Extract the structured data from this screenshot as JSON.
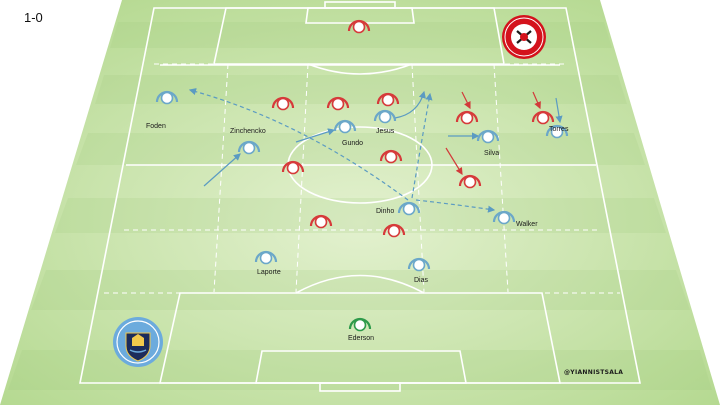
{
  "score": "1-0",
  "credit": "@YIANNISTSALA",
  "crests": {
    "home": {
      "name": "sheffield-united-crest",
      "color": "#d4121c"
    },
    "away": {
      "name": "manchester-city-crest",
      "color": "#6cabdd",
      "text": "MANCHESTER CITY"
    }
  },
  "colors": {
    "pitch_light": "#d6ebbd",
    "pitch_dark": "#b9dc97",
    "city_player": "#6ba7c9",
    "united_player": "#d63a3a",
    "goalkeeper": "#2e9a4a"
  },
  "city_players": [
    {
      "id": "foden",
      "label": "Foden"
    },
    {
      "id": "zinchencko",
      "label": "Zinchencko"
    },
    {
      "id": "gundo",
      "label": "Gundo"
    },
    {
      "id": "jesus",
      "label": "Jesus"
    },
    {
      "id": "silva",
      "label": "Silva"
    },
    {
      "id": "torres",
      "label": "Torres"
    },
    {
      "id": "dinho",
      "label": "Dinho"
    },
    {
      "id": "walker",
      "label": "Walker"
    },
    {
      "id": "laporte",
      "label": "Laporte"
    },
    {
      "id": "dias",
      "label": "Dias"
    },
    {
      "id": "ederson",
      "label": "Ederson"
    }
  ],
  "united_players_count": 11
}
